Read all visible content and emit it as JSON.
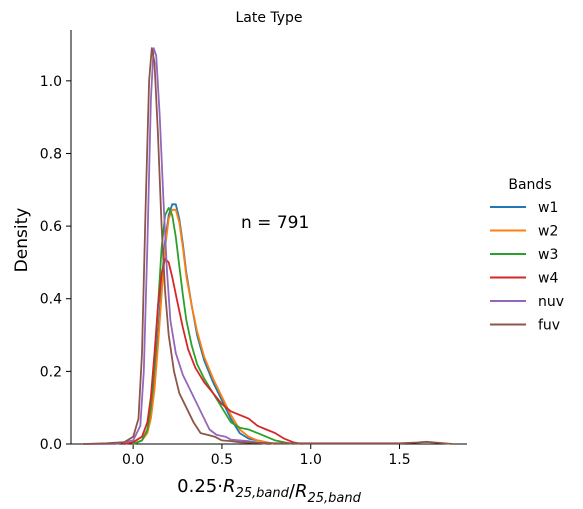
{
  "chart_data": {
    "type": "line",
    "title": "Late Type",
    "xlabel": "0.25·R_{25,band}/R_{25,band}",
    "ylabel": "Density",
    "xlim": [
      -0.35,
      1.88
    ],
    "ylim": [
      0,
      1.14
    ],
    "xticks": [
      0.0,
      0.5,
      1.0,
      1.5
    ],
    "yticks": [
      0.0,
      0.2,
      0.4,
      0.6,
      0.8,
      1.0
    ],
    "grid": false,
    "annotation": "n = 791",
    "legend": {
      "title": "Bands",
      "placement": "right"
    },
    "series": [
      {
        "name": "w1",
        "color": "#1f77b4",
        "points": [
          [
            0.0,
            0.0
          ],
          [
            0.05,
            0.01
          ],
          [
            0.08,
            0.04
          ],
          [
            0.1,
            0.09
          ],
          [
            0.12,
            0.18
          ],
          [
            0.14,
            0.3
          ],
          [
            0.16,
            0.44
          ],
          [
            0.18,
            0.56
          ],
          [
            0.2,
            0.63
          ],
          [
            0.22,
            0.66
          ],
          [
            0.24,
            0.66
          ],
          [
            0.26,
            0.62
          ],
          [
            0.28,
            0.55
          ],
          [
            0.3,
            0.47
          ],
          [
            0.33,
            0.38
          ],
          [
            0.36,
            0.3
          ],
          [
            0.4,
            0.23
          ],
          [
            0.45,
            0.17
          ],
          [
            0.5,
            0.12
          ],
          [
            0.55,
            0.07
          ],
          [
            0.6,
            0.03
          ],
          [
            0.65,
            0.015
          ],
          [
            0.7,
            0.01
          ],
          [
            0.75,
            0.005
          ],
          [
            0.8,
            0.0
          ]
        ]
      },
      {
        "name": "w2",
        "color": "#ff7f0e",
        "points": [
          [
            0.0,
            0.0
          ],
          [
            0.05,
            0.01
          ],
          [
            0.08,
            0.03
          ],
          [
            0.1,
            0.07
          ],
          [
            0.12,
            0.15
          ],
          [
            0.14,
            0.27
          ],
          [
            0.16,
            0.41
          ],
          [
            0.18,
            0.54
          ],
          [
            0.2,
            0.62
          ],
          [
            0.22,
            0.645
          ],
          [
            0.24,
            0.645
          ],
          [
            0.26,
            0.61
          ],
          [
            0.28,
            0.54
          ],
          [
            0.3,
            0.46
          ],
          [
            0.33,
            0.38
          ],
          [
            0.36,
            0.31
          ],
          [
            0.4,
            0.24
          ],
          [
            0.45,
            0.18
          ],
          [
            0.5,
            0.13
          ],
          [
            0.55,
            0.08
          ],
          [
            0.6,
            0.04
          ],
          [
            0.65,
            0.02
          ],
          [
            0.7,
            0.01
          ],
          [
            0.75,
            0.005
          ],
          [
            0.8,
            0.0
          ]
        ]
      },
      {
        "name": "w3",
        "color": "#2ca02c",
        "points": [
          [
            0.0,
            0.0
          ],
          [
            0.05,
            0.01
          ],
          [
            0.08,
            0.04
          ],
          [
            0.1,
            0.1
          ],
          [
            0.12,
            0.22
          ],
          [
            0.14,
            0.38
          ],
          [
            0.16,
            0.54
          ],
          [
            0.18,
            0.63
          ],
          [
            0.2,
            0.65
          ],
          [
            0.22,
            0.63
          ],
          [
            0.24,
            0.57
          ],
          [
            0.26,
            0.49
          ],
          [
            0.28,
            0.41
          ],
          [
            0.3,
            0.34
          ],
          [
            0.33,
            0.27
          ],
          [
            0.36,
            0.22
          ],
          [
            0.4,
            0.18
          ],
          [
            0.45,
            0.14
          ],
          [
            0.5,
            0.1
          ],
          [
            0.55,
            0.06
          ],
          [
            0.6,
            0.045
          ],
          [
            0.65,
            0.04
          ],
          [
            0.7,
            0.03
          ],
          [
            0.75,
            0.02
          ],
          [
            0.8,
            0.01
          ],
          [
            0.85,
            0.005
          ],
          [
            0.9,
            0.0
          ]
        ]
      },
      {
        "name": "w4",
        "color": "#d62728",
        "points": [
          [
            -0.05,
            0.0
          ],
          [
            0.0,
            0.005
          ],
          [
            0.05,
            0.02
          ],
          [
            0.08,
            0.06
          ],
          [
            0.1,
            0.13
          ],
          [
            0.12,
            0.25
          ],
          [
            0.14,
            0.38
          ],
          [
            0.16,
            0.47
          ],
          [
            0.18,
            0.51
          ],
          [
            0.2,
            0.5
          ],
          [
            0.22,
            0.46
          ],
          [
            0.25,
            0.39
          ],
          [
            0.28,
            0.32
          ],
          [
            0.31,
            0.26
          ],
          [
            0.35,
            0.21
          ],
          [
            0.4,
            0.17
          ],
          [
            0.45,
            0.14
          ],
          [
            0.5,
            0.11
          ],
          [
            0.55,
            0.09
          ],
          [
            0.6,
            0.08
          ],
          [
            0.65,
            0.07
          ],
          [
            0.7,
            0.05
          ],
          [
            0.75,
            0.04
          ],
          [
            0.8,
            0.03
          ],
          [
            0.85,
            0.015
          ],
          [
            0.9,
            0.005
          ],
          [
            0.95,
            0.0
          ]
        ]
      },
      {
        "name": "nuv",
        "color": "#9467bd",
        "points": [
          [
            -0.28,
            0.0
          ],
          [
            -0.1,
            0.0
          ],
          [
            0.0,
            0.01
          ],
          [
            0.04,
            0.05
          ],
          [
            0.06,
            0.2
          ],
          [
            0.08,
            0.55
          ],
          [
            0.1,
            0.95
          ],
          [
            0.115,
            1.09
          ],
          [
            0.13,
            1.07
          ],
          [
            0.15,
            0.9
          ],
          [
            0.17,
            0.68
          ],
          [
            0.19,
            0.48
          ],
          [
            0.21,
            0.34
          ],
          [
            0.24,
            0.25
          ],
          [
            0.28,
            0.19
          ],
          [
            0.32,
            0.15
          ],
          [
            0.36,
            0.11
          ],
          [
            0.4,
            0.07
          ],
          [
            0.43,
            0.04
          ],
          [
            0.47,
            0.025
          ],
          [
            0.52,
            0.02
          ],
          [
            0.55,
            0.012
          ],
          [
            0.6,
            0.01
          ],
          [
            0.65,
            0.008
          ],
          [
            0.7,
            0.004
          ],
          [
            0.75,
            0.0
          ]
        ]
      },
      {
        "name": "fuv",
        "color": "#8c564b",
        "points": [
          [
            -0.28,
            0.0
          ],
          [
            -0.15,
            0.002
          ],
          [
            -0.05,
            0.005
          ],
          [
            0.0,
            0.02
          ],
          [
            0.03,
            0.07
          ],
          [
            0.05,
            0.25
          ],
          [
            0.07,
            0.65
          ],
          [
            0.09,
            1.0
          ],
          [
            0.105,
            1.09
          ],
          [
            0.12,
            1.05
          ],
          [
            0.14,
            0.85
          ],
          [
            0.16,
            0.6
          ],
          [
            0.18,
            0.42
          ],
          [
            0.2,
            0.3
          ],
          [
            0.23,
            0.2
          ],
          [
            0.26,
            0.14
          ],
          [
            0.3,
            0.1
          ],
          [
            0.34,
            0.06
          ],
          [
            0.38,
            0.03
          ],
          [
            0.42,
            0.025
          ],
          [
            0.46,
            0.02
          ],
          [
            0.5,
            0.01
          ],
          [
            0.55,
            0.008
          ],
          [
            0.6,
            0.005
          ],
          [
            0.7,
            0.003
          ],
          [
            0.8,
            0.002
          ],
          [
            0.95,
            0.002
          ],
          [
            1.2,
            0.002
          ],
          [
            1.5,
            0.002
          ],
          [
            1.6,
            0.004
          ],
          [
            1.65,
            0.006
          ],
          [
            1.7,
            0.004
          ],
          [
            1.8,
            0.0
          ]
        ]
      }
    ]
  }
}
